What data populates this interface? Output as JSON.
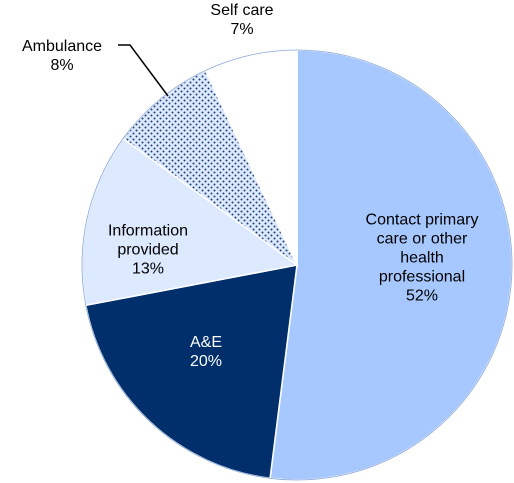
{
  "chart_data": {
    "type": "pie",
    "categories": [
      "Contact primary care or other health professional",
      "A&E",
      "Information provided",
      "Ambulance",
      "Self care"
    ],
    "values": [
      52,
      20,
      13,
      8,
      7
    ],
    "value_labels": [
      "52%",
      "20%",
      "13%",
      "8%",
      "7%"
    ],
    "colors": [
      "#a6c8ff",
      "#002f6c",
      "#dce9ff",
      "#dce9ff",
      "#ffffff"
    ],
    "patterns": [
      null,
      null,
      null,
      "dots",
      null
    ],
    "label_colors": [
      "#000000",
      "#ffffff",
      "#000000",
      "#000000",
      "#000000"
    ]
  }
}
